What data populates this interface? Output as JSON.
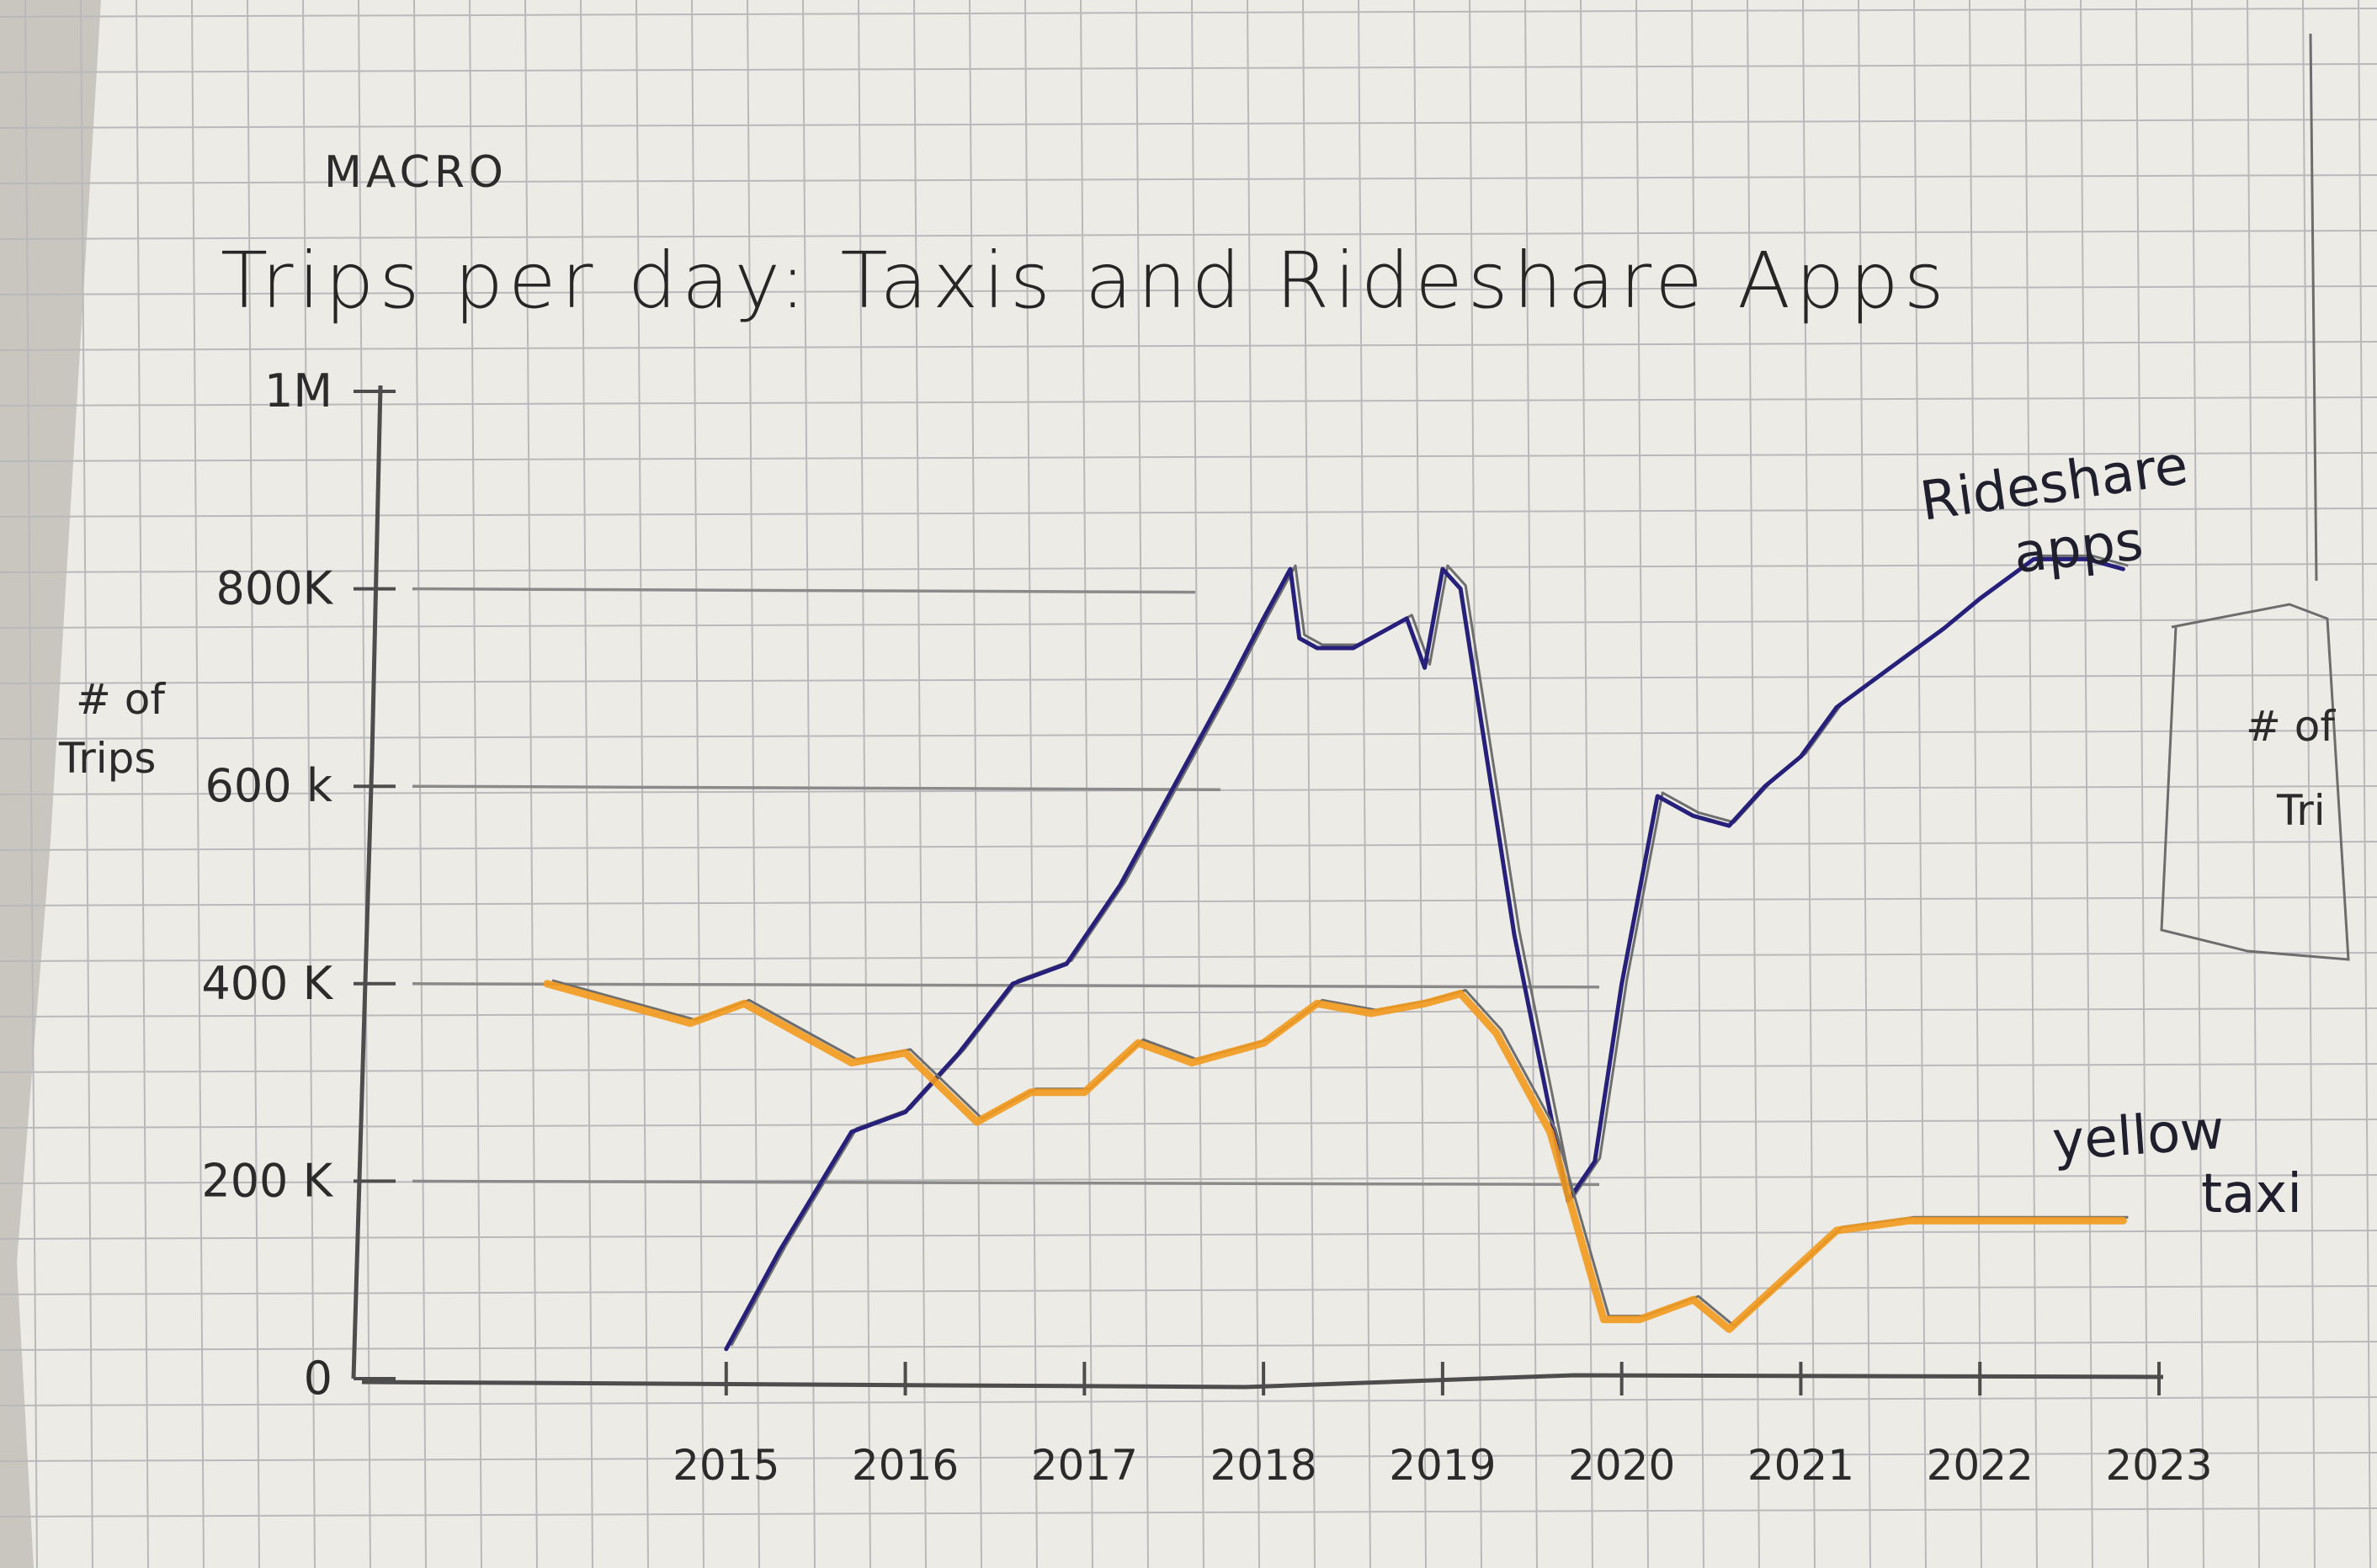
{
  "overline": "MACRO",
  "chart_data": {
    "type": "line",
    "title": "Trips per day: Taxis and Rideshare Apps",
    "xlabel": "",
    "ylabel": "# of Trips",
    "xlim": [
      2014.0,
      2023.0
    ],
    "ylim": [
      0,
      1000000
    ],
    "y_ticks": [
      {
        "value": 0,
        "label": "0"
      },
      {
        "value": 200000,
        "label": "200 K"
      },
      {
        "value": 400000,
        "label": "400 K"
      },
      {
        "value": 600000,
        "label": "600 k"
      },
      {
        "value": 800000,
        "label": "800K"
      },
      {
        "value": 1000000,
        "label": "1M"
      }
    ],
    "x_ticks": [
      {
        "value": 2015,
        "label": "2015"
      },
      {
        "value": 2016,
        "label": "2016"
      },
      {
        "value": 2017,
        "label": "2017"
      },
      {
        "value": 2018,
        "label": "2018"
      },
      {
        "value": 2019,
        "label": "2019"
      },
      {
        "value": 2020,
        "label": "2020"
      },
      {
        "value": 2021,
        "label": "2021"
      },
      {
        "value": 2022,
        "label": "2022"
      },
      {
        "value": 2023,
        "label": "2023"
      }
    ],
    "gridlines_y": [
      200000,
      400000,
      600000,
      800000
    ],
    "series": [
      {
        "name": "Rideshare apps",
        "color": "#27207a",
        "x": [
          2015.0,
          2015.3,
          2015.7,
          2016.0,
          2016.3,
          2016.6,
          2016.9,
          2017.2,
          2017.5,
          2017.8,
          2018.0,
          2018.15,
          2018.2,
          2018.3,
          2018.5,
          2018.8,
          2018.9,
          2019.0,
          2019.1,
          2019.4,
          2019.7,
          2019.85,
          2020.0,
          2020.2,
          2020.4,
          2020.6,
          2020.8,
          2021.0,
          2021.2,
          2021.5,
          2021.8,
          2022.0,
          2022.3,
          2022.6,
          2022.8
        ],
        "values": [
          30000,
          130000,
          250000,
          270000,
          330000,
          400000,
          420000,
          500000,
          600000,
          700000,
          770000,
          820000,
          750000,
          740000,
          740000,
          770000,
          720000,
          820000,
          800000,
          450000,
          180000,
          220000,
          400000,
          590000,
          570000,
          560000,
          600000,
          630000,
          680000,
          720000,
          760000,
          790000,
          830000,
          830000,
          820000
        ]
      },
      {
        "name": "yellow taxi",
        "color": "#f39a1d",
        "x": [
          2014.0,
          2014.4,
          2014.8,
          2015.1,
          2015.4,
          2015.7,
          2016.0,
          2016.4,
          2016.7,
          2017.0,
          2017.3,
          2017.6,
          2018.0,
          2018.3,
          2018.6,
          2018.9,
          2019.1,
          2019.3,
          2019.6,
          2019.9,
          2020.1,
          2020.4,
          2020.6,
          2020.9,
          2021.2,
          2021.6,
          2022.0,
          2022.4,
          2022.8
        ],
        "values": [
          400000,
          380000,
          360000,
          380000,
          350000,
          320000,
          330000,
          260000,
          290000,
          290000,
          340000,
          320000,
          340000,
          380000,
          370000,
          380000,
          390000,
          350000,
          250000,
          60000,
          60000,
          80000,
          50000,
          100000,
          150000,
          160000,
          160000,
          160000,
          160000
        ]
      }
    ],
    "annotations": [
      {
        "text": "Rideshare",
        "series": "Rideshare apps"
      },
      {
        "text": "apps",
        "series": "Rideshare apps"
      },
      {
        "text": "yellow",
        "series": "yellow taxi"
      },
      {
        "text": "taxi",
        "series": "yellow taxi"
      }
    ]
  },
  "side_fragment": {
    "line1": "# of",
    "line2": "Tri"
  },
  "colors": {
    "paper": "#ecebe6",
    "grid": "#b9b9bc",
    "pencil": "#4d4d4d"
  }
}
